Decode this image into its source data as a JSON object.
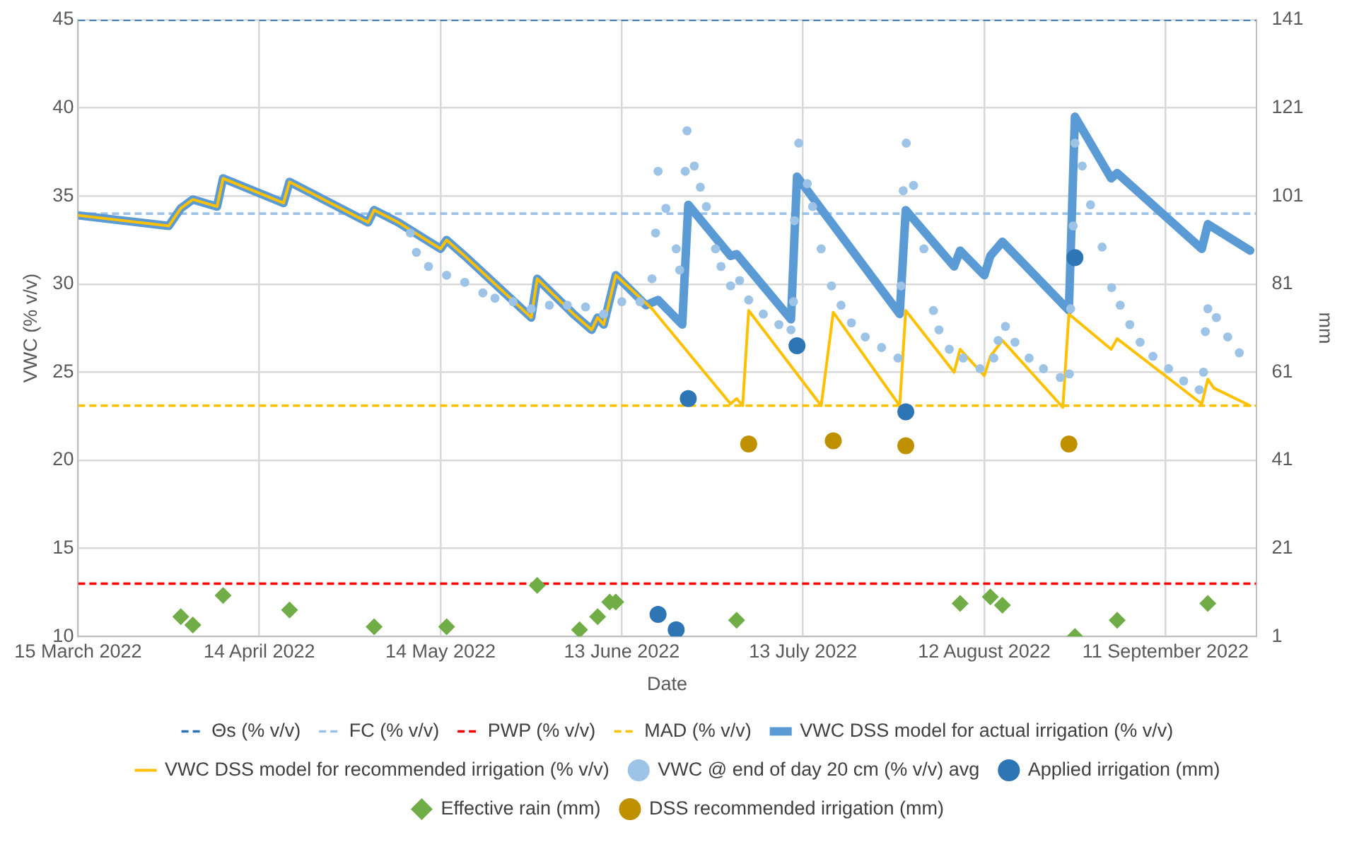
{
  "chart_data": {
    "type": "line",
    "xlabel": "Date",
    "ylabel": "VWC (% v/v)",
    "y2label": "mm",
    "xlim": [
      "2022-03-15",
      "2022-09-26"
    ],
    "xticks": [
      {
        "value": "2022-03-15",
        "label": "15 March 2022"
      },
      {
        "value": "2022-04-14",
        "label": "14 April 2022"
      },
      {
        "value": "2022-05-14",
        "label": "14 May 2022"
      },
      {
        "value": "2022-06-13",
        "label": "13 June 2022"
      },
      {
        "value": "2022-07-13",
        "label": "13 July 2022"
      },
      {
        "value": "2022-08-12",
        "label": "12 August 2022"
      },
      {
        "value": "2022-09-11",
        "label": "11 September 2022"
      }
    ],
    "ylim": [
      10,
      45
    ],
    "yticks": [
      10,
      15,
      20,
      25,
      30,
      35,
      40,
      45
    ],
    "y2lim": [
      1,
      141
    ],
    "y2ticks": [
      1,
      21,
      41,
      61,
      81,
      101,
      121,
      141
    ],
    "grid": true,
    "legend": "bottom",
    "ref_lines": [
      {
        "axis": "y",
        "value": 45,
        "label": "Θs (% v/v)",
        "color": "#2e75b6",
        "line_style": "dashed"
      },
      {
        "axis": "y",
        "value": 34,
        "label": "FC (% v/v)",
        "color": "#9dc3e6",
        "line_style": "dashed"
      },
      {
        "axis": "y",
        "value": 13,
        "label": "PWP (% v/v)",
        "color": "#ff0000",
        "line_style": "dashed"
      },
      {
        "axis": "y",
        "value": 23.1,
        "label": "MAD (% v/v)",
        "color": "#ffc000",
        "line_style": "dashed"
      }
    ],
    "series": [
      {
        "name": "VWC DSS model for actual irrigation (% v/v)",
        "color": "#5b9bd5",
        "marker": "none",
        "line_style": "solid",
        "x": [
          "2022-03-15",
          "2022-03-30",
          "2022-04-01",
          "2022-04-03",
          "2022-04-07",
          "2022-04-08",
          "2022-04-18",
          "2022-04-19",
          "2022-05-02",
          "2022-05-03",
          "2022-05-07",
          "2022-05-14",
          "2022-05-15",
          "2022-05-18",
          "2022-05-29",
          "2022-05-30",
          "2022-06-05",
          "2022-06-08",
          "2022-06-09",
          "2022-06-10",
          "2022-06-12",
          "2022-06-17",
          "2022-06-19",
          "2022-06-23",
          "2022-06-24",
          "2022-07-01",
          "2022-07-02",
          "2022-07-11",
          "2022-07-12",
          "2022-07-29",
          "2022-07-30",
          "2022-08-07",
          "2022-08-08",
          "2022-08-12",
          "2022-08-13",
          "2022-08-15",
          "2022-08-26",
          "2022-08-27",
          "2022-09-02",
          "2022-09-03",
          "2022-09-17",
          "2022-09-18",
          "2022-09-25"
        ],
        "values": [
          33.9,
          33.3,
          34.3,
          34.8,
          34.4,
          36.0,
          34.6,
          35.8,
          33.5,
          34.2,
          33.5,
          32.0,
          32.5,
          31.6,
          28.1,
          30.3,
          28.3,
          27.4,
          28.1,
          27.7,
          30.5,
          28.8,
          29.1,
          27.7,
          34.5,
          31.6,
          31.7,
          28.0,
          36.1,
          28.3,
          34.2,
          31.0,
          31.9,
          30.5,
          31.6,
          32.4,
          28.5,
          39.5,
          36.0,
          36.3,
          32.0,
          33.4,
          31.9
        ]
      },
      {
        "name": "VWC DSS model for recommended irrigation (% v/v)",
        "color": "#ffc000",
        "marker": "none",
        "line_style": "solid",
        "x": [
          "2022-03-15",
          "2022-03-30",
          "2022-04-01",
          "2022-04-03",
          "2022-04-07",
          "2022-04-08",
          "2022-04-18",
          "2022-04-19",
          "2022-05-02",
          "2022-05-03",
          "2022-05-07",
          "2022-05-14",
          "2022-05-15",
          "2022-05-18",
          "2022-05-29",
          "2022-05-30",
          "2022-06-05",
          "2022-06-08",
          "2022-06-09",
          "2022-06-10",
          "2022-06-12",
          "2022-06-18",
          "2022-07-01",
          "2022-07-02",
          "2022-07-03",
          "2022-07-04",
          "2022-07-16",
          "2022-07-18",
          "2022-07-29",
          "2022-07-30",
          "2022-08-07",
          "2022-08-08",
          "2022-08-12",
          "2022-08-13",
          "2022-08-15",
          "2022-08-25",
          "2022-08-26",
          "2022-09-02",
          "2022-09-03",
          "2022-09-17",
          "2022-09-18",
          "2022-09-19",
          "2022-09-25"
        ],
        "values": [
          33.9,
          33.3,
          34.3,
          34.8,
          34.4,
          36.0,
          34.6,
          35.8,
          33.5,
          34.2,
          33.5,
          32.0,
          32.5,
          31.6,
          28.1,
          30.3,
          28.3,
          27.4,
          28.1,
          27.7,
          30.5,
          28.6,
          23.2,
          23.5,
          23.1,
          28.5,
          23.1,
          28.4,
          23.1,
          28.5,
          25.0,
          26.3,
          24.8,
          25.9,
          26.8,
          23.0,
          28.3,
          26.3,
          26.9,
          23.2,
          24.6,
          24.1,
          23.1
        ]
      },
      {
        "name": "VWC @ end of day 20 cm (% v/v) avg",
        "type": "scatter",
        "color": "#9dc3e6",
        "marker": "circle",
        "x": [
          "2022-05-09",
          "2022-05-10",
          "2022-05-12",
          "2022-05-15",
          "2022-05-18",
          "2022-05-21",
          "2022-05-23",
          "2022-05-26",
          "2022-05-29",
          "2022-06-01",
          "2022-06-04",
          "2022-06-07",
          "2022-06-10",
          "2022-06-13",
          "2022-06-16",
          "2022-06-18",
          "2022-06-18T14:00",
          "2022-06-19",
          "2022-06-20T07:00",
          "2022-06-22",
          "2022-06-22T14:00",
          "2022-06-23T12:00",
          "2022-06-23T19:00",
          "2022-06-25",
          "2022-06-26",
          "2022-06-27",
          "2022-06-28T12:00",
          "2022-06-29T10:00",
          "2022-07-01",
          "2022-07-02T12:00",
          "2022-07-04",
          "2022-07-06T10:00",
          "2022-07-09",
          "2022-07-11",
          "2022-07-11T10:00",
          "2022-07-11T14:00",
          "2022-07-12T07:00",
          "2022-07-13T17:00",
          "2022-07-14T14:00",
          "2022-07-16",
          "2022-07-17T17:00",
          "2022-07-19T07:00",
          "2022-07-21",
          "2022-07-23T07:00",
          "2022-07-26",
          "2022-07-28T17:00",
          "2022-07-29T05:00",
          "2022-07-29T14:00",
          "2022-07-30T02:00",
          "2022-07-31T07:00",
          "2022-08-02",
          "2022-08-03T14:00",
          "2022-08-04T12:00",
          "2022-08-06T05:00",
          "2022-08-08T12:00",
          "2022-08-11T07:00",
          "2022-08-13T14:00",
          "2022-08-14T07:00",
          "2022-08-15T12:00",
          "2022-08-17T02:00",
          "2022-08-19T10:00",
          "2022-08-21T19:00",
          "2022-08-24T14:00",
          "2022-08-26T02:00",
          "2022-08-26T07:00",
          "2022-08-26T17:00",
          "2022-08-27",
          "2022-08-28T05:00",
          "2022-08-29T14:00",
          "2022-08-31T12:00",
          "2022-09-02T02:00",
          "2022-09-03T12:00",
          "2022-09-05T02:00",
          "2022-09-06T19:00",
          "2022-09-08T22:00",
          "2022-09-11T12:00",
          "2022-09-14",
          "2022-09-16T14:00",
          "2022-09-17T07:00",
          "2022-09-17T14:00",
          "2022-09-18",
          "2022-09-19T10:00",
          "2022-09-21T07:00",
          "2022-09-23T05:00"
        ],
        "values": [
          32.9,
          31.8,
          31.0,
          30.5,
          30.1,
          29.5,
          29.2,
          29.0,
          28.6,
          28.8,
          28.8,
          28.7,
          28.3,
          29.0,
          29.0,
          30.3,
          32.9,
          36.4,
          34.3,
          32.0,
          30.8,
          36.4,
          38.7,
          36.7,
          35.5,
          34.4,
          32.0,
          31.0,
          29.9,
          30.2,
          29.1,
          28.3,
          27.7,
          27.4,
          29.0,
          33.6,
          38.0,
          35.7,
          34.4,
          32.0,
          29.9,
          28.8,
          27.8,
          27.0,
          26.4,
          25.8,
          29.9,
          35.3,
          38.0,
          35.6,
          32.0,
          28.5,
          27.4,
          26.3,
          25.8,
          25.2,
          25.8,
          26.8,
          27.6,
          26.7,
          25.8,
          25.2,
          24.7,
          24.9,
          28.6,
          33.3,
          38.0,
          36.7,
          34.5,
          32.1,
          29.8,
          28.8,
          27.7,
          26.7,
          25.9,
          25.2,
          24.5,
          24.0,
          25.0,
          27.3,
          28.6,
          28.1,
          27.0,
          26.1
        ]
      },
      {
        "name": "Applied irrigation (mm)",
        "type": "scatter",
        "axis": "y2",
        "color": "#2e75b6",
        "marker": "circle",
        "x": [
          "2022-06-19",
          "2022-06-22",
          "2022-06-24",
          "2022-07-12",
          "2022-07-30",
          "2022-08-27"
        ],
        "values": [
          6,
          2.5,
          55,
          67,
          52,
          87
        ]
      },
      {
        "name": "Effective rain (mm)",
        "type": "scatter",
        "axis": "y2",
        "color": "#70ad47",
        "marker": "diamond",
        "x": [
          "2022-04-01",
          "2022-04-03",
          "2022-04-08",
          "2022-04-19",
          "2022-05-03",
          "2022-05-15",
          "2022-05-30",
          "2022-06-06",
          "2022-06-09",
          "2022-06-11",
          "2022-06-12",
          "2022-07-02",
          "2022-08-08",
          "2022-08-13",
          "2022-08-15",
          "2022-08-27",
          "2022-09-03",
          "2022-09-18"
        ],
        "values": [
          5.5,
          3.6,
          10.3,
          7,
          3.2,
          3.2,
          12.6,
          2.5,
          5.5,
          8.8,
          8.8,
          4.7,
          8.5,
          10,
          8.1,
          1,
          4.7,
          8.5
        ]
      },
      {
        "name": "DSS recommended irrigation (mm)",
        "type": "scatter",
        "axis": "y2",
        "color": "#bf9000",
        "marker": "circle",
        "x": [
          "2022-07-04",
          "2022-07-18",
          "2022-07-30",
          "2022-08-26"
        ],
        "values": [
          44.7,
          45.4,
          44.3,
          44.7
        ]
      }
    ]
  }
}
